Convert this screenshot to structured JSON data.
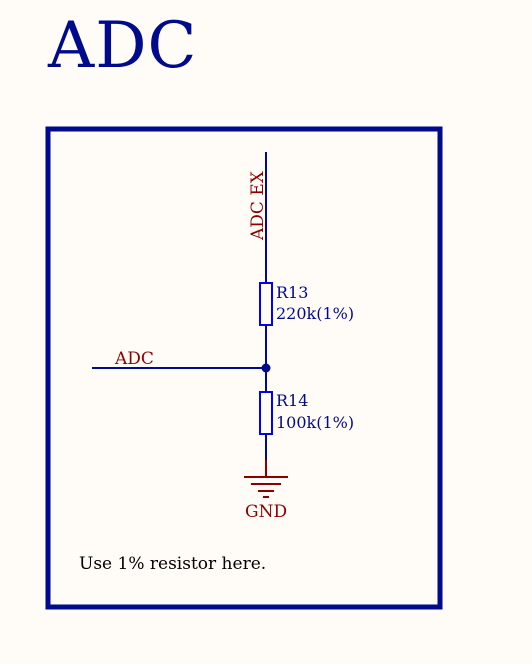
{
  "sheet": {
    "title": "ADC"
  },
  "nets": {
    "top_port": "ADC EX",
    "left_net": "ADC",
    "ground": "GND"
  },
  "components": {
    "r13": {
      "designator": "R13",
      "value": "220k(1%)"
    },
    "r14": {
      "designator": "R14",
      "value": "100k(1%)"
    }
  },
  "note": {
    "text": "Use 1% resistor here."
  },
  "colors": {
    "wire": "#000a8c",
    "component_outline": "#0000ff",
    "net_label": "#8c0000",
    "frame": "#000a8c",
    "background": "#fffcf7",
    "note_text": "#000000"
  }
}
